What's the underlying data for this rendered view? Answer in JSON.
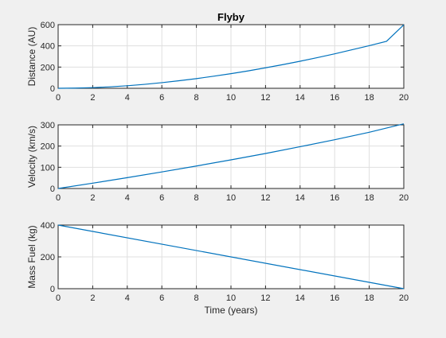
{
  "figure_title": "Flyby",
  "colors": {
    "background": "#f0f0f0",
    "axes_background": "#ffffff",
    "series": "#0072bd",
    "grid": "#dfdfdf"
  },
  "chart_data": [
    {
      "type": "line",
      "title": "Flyby",
      "xlabel": "",
      "ylabel": "Distance (AU)",
      "xlim": [
        0,
        20
      ],
      "ylim": [
        0,
        600
      ],
      "xticks": [
        0,
        2,
        4,
        6,
        8,
        10,
        12,
        14,
        16,
        18,
        20
      ],
      "yticks": [
        0,
        200,
        400,
        600
      ],
      "grid": true,
      "series": [
        {
          "x": [
            0,
            1,
            2,
            3,
            4,
            5,
            6,
            7,
            8,
            9,
            10,
            11,
            12,
            13,
            14,
            15,
            16,
            17,
            18,
            19,
            20
          ],
          "values": [
            0,
            1.7,
            6.2,
            13.7,
            24,
            37,
            53,
            71,
            91,
            114,
            138,
            164,
            193,
            223,
            255,
            289,
            325,
            363,
            402,
            443,
            599
          ]
        }
      ]
    },
    {
      "type": "line",
      "title": "",
      "xlabel": "",
      "ylabel": "Velocity (km/s)",
      "xlim": [
        0,
        20
      ],
      "ylim": [
        0,
        300
      ],
      "xticks": [
        0,
        2,
        4,
        6,
        8,
        10,
        12,
        14,
        16,
        18,
        20
      ],
      "yticks": [
        0,
        100,
        200,
        300
      ],
      "grid": true,
      "series": [
        {
          "x": [
            0,
            2,
            4,
            6,
            8,
            10,
            12,
            14,
            16,
            18,
            20
          ],
          "values": [
            0,
            25,
            51,
            78,
            106,
            135,
            165,
            197,
            230,
            265,
            305
          ]
        }
      ]
    },
    {
      "type": "line",
      "title": "",
      "xlabel": "Time (years)",
      "ylabel": "Mass Fuel (kg)",
      "xlim": [
        0,
        20
      ],
      "ylim": [
        0,
        400
      ],
      "xticks": [
        0,
        2,
        4,
        6,
        8,
        10,
        12,
        14,
        16,
        18,
        20
      ],
      "yticks": [
        0,
        200,
        400
      ],
      "grid": true,
      "series": [
        {
          "x": [
            0,
            20
          ],
          "values": [
            400,
            0
          ]
        }
      ]
    }
  ]
}
